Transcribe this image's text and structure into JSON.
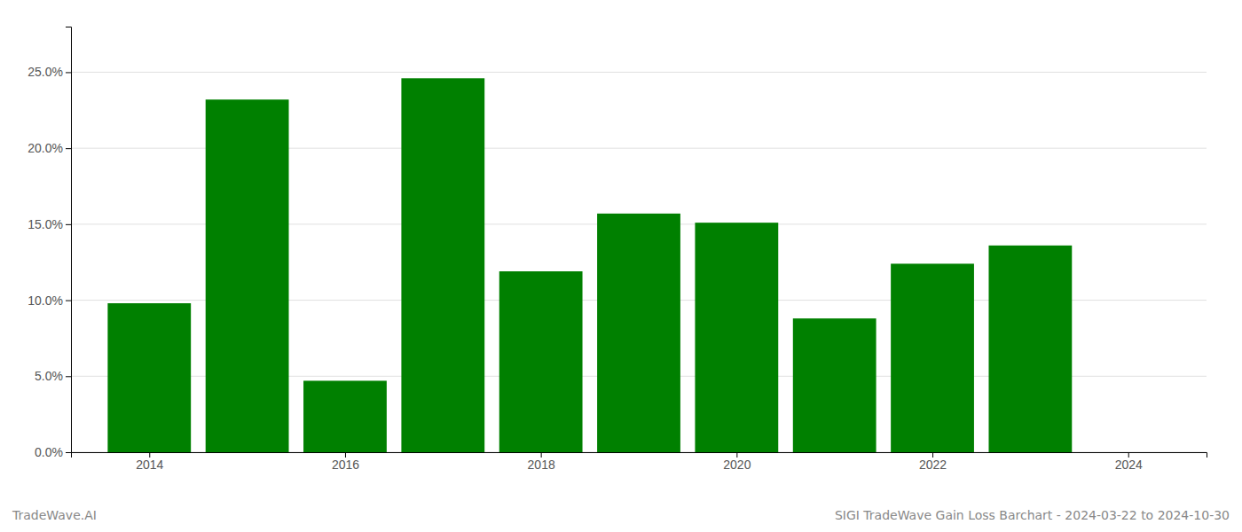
{
  "chart_data": {
    "type": "bar",
    "title": "SIGI TradeWave Gain Loss Barchart - 2024-03-22 to 2024-10-30",
    "annotations": [
      "TradeWave.AI"
    ],
    "x": [
      2014,
      2015,
      2016,
      2017,
      2018,
      2019,
      2020,
      2021,
      2022,
      2023
    ],
    "values": [
      0.098,
      0.232,
      0.047,
      0.246,
      0.119,
      0.157,
      0.151,
      0.088,
      0.124,
      0.136
    ],
    "color": "#008000",
    "xlim": [
      2013.2,
      2024.8
    ],
    "xticks": [
      2014,
      2016,
      2018,
      2020,
      2022,
      2024
    ],
    "ylim": [
      0,
      0.28
    ],
    "yticks": [
      {
        "value": 0.0,
        "label": "0.0%"
      },
      {
        "value": 0.05,
        "label": "5.0%"
      },
      {
        "value": 0.1,
        "label": "10.0%"
      },
      {
        "value": 0.15,
        "label": "15.0%"
      },
      {
        "value": 0.2,
        "label": "20.0%"
      },
      {
        "value": 0.25,
        "label": "25.0%"
      }
    ],
    "grid": true
  }
}
